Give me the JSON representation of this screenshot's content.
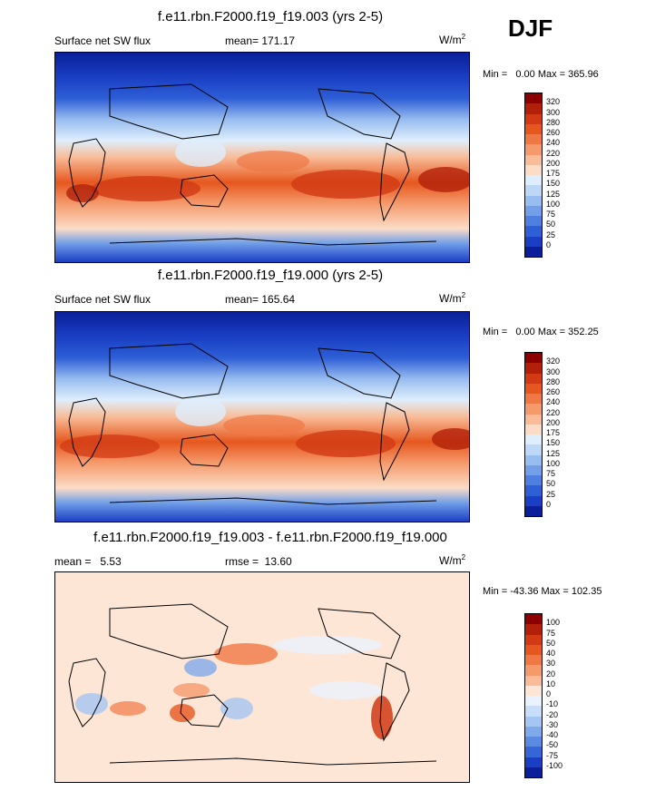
{
  "season": "DJF",
  "panels": [
    {
      "title": "f.e11.rbn.F2000.f19_f19.003 (yrs 2-5)",
      "left_label": "Surface net SW flux",
      "center_label": "mean= 171.17",
      "units_base": "W/m",
      "units_exp": "2",
      "minmax": "Min =   0.00 Max = 365.96",
      "colorbar": {
        "labels": [
          "320",
          "300",
          "280",
          "260",
          "240",
          "220",
          "200",
          "175",
          "150",
          "125",
          "100",
          "75",
          "50",
          "25",
          "0"
        ],
        "colors": [
          "#8b0000",
          "#b2200a",
          "#d13a14",
          "#e6571f",
          "#f07845",
          "#f59a6b",
          "#f8bc98",
          "#fbdcc6",
          "#dfeefc",
          "#bdd7f5",
          "#98bdf0",
          "#729fe8",
          "#4f7fe0",
          "#2e5fd6",
          "#1a3fc4",
          "#0a1f99"
        ]
      }
    },
    {
      "title": "f.e11.rbn.F2000.f19_f19.000 (yrs 2-5)",
      "left_label": "Surface net SW flux",
      "center_label": "mean= 165.64",
      "units_base": "W/m",
      "units_exp": "2",
      "minmax": "Min =   0.00 Max = 352.25",
      "colorbar": {
        "labels": [
          "320",
          "300",
          "280",
          "260",
          "240",
          "220",
          "200",
          "175",
          "150",
          "125",
          "100",
          "75",
          "50",
          "25",
          "0"
        ],
        "colors": [
          "#8b0000",
          "#b2200a",
          "#d13a14",
          "#e6571f",
          "#f07845",
          "#f59a6b",
          "#f8bc98",
          "#fbdcc6",
          "#dfeefc",
          "#bdd7f5",
          "#98bdf0",
          "#729fe8",
          "#4f7fe0",
          "#2e5fd6",
          "#1a3fc4",
          "#0a1f99"
        ]
      }
    },
    {
      "title": "f.e11.rbn.F2000.f19_f19.003 - f.e11.rbn.F2000.f19_f19.000",
      "left_label": "mean =   5.53",
      "center_label": "rmse =  13.60",
      "units_base": "W/m",
      "units_exp": "2",
      "minmax": "Min = -43.36 Max = 102.35",
      "colorbar": {
        "labels": [
          "100",
          "75",
          "50",
          "40",
          "30",
          "20",
          "10",
          "0",
          "-10",
          "-20",
          "-30",
          "-40",
          "-50",
          "-75",
          "-100"
        ],
        "colors": [
          "#8b0000",
          "#b2200a",
          "#d13a14",
          "#e6571f",
          "#f07845",
          "#f59a6b",
          "#f8bc98",
          "#fde6d6",
          "#eaf3fd",
          "#c9def8",
          "#a5c6f2",
          "#7faaea",
          "#5a8ae2",
          "#3565d6",
          "#1a3fc4",
          "#0a1f99"
        ]
      }
    }
  ]
}
